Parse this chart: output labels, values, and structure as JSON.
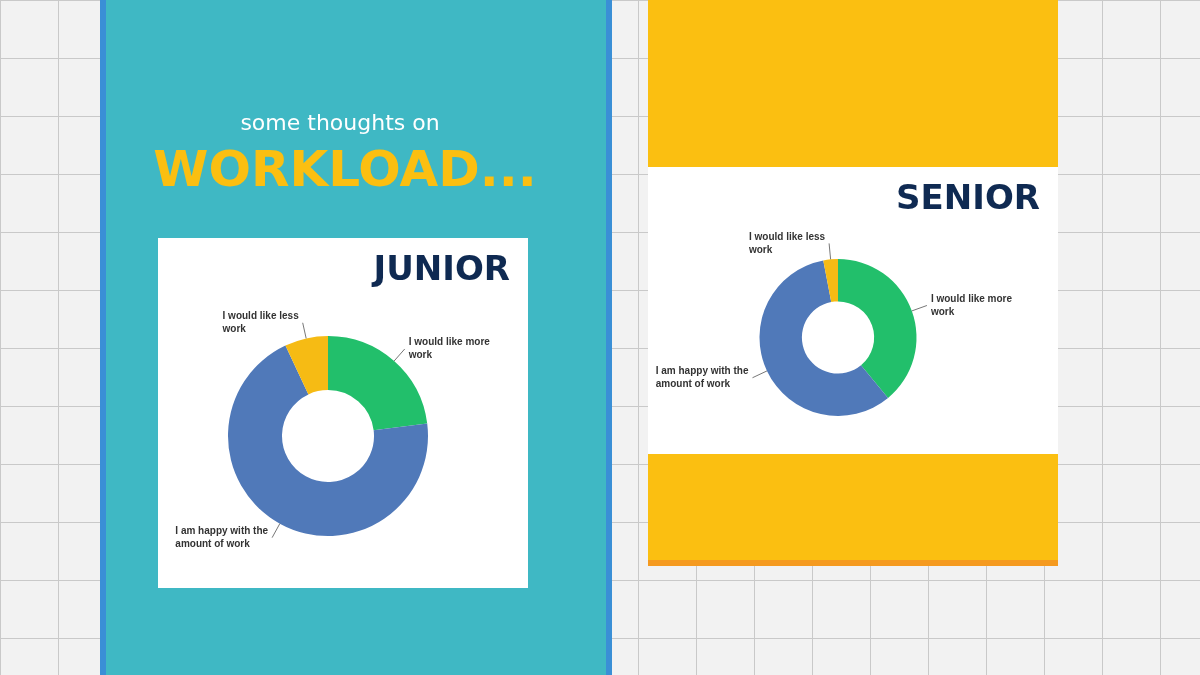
{
  "chart_data": [
    {
      "type": "donut",
      "title": "JUNIOR",
      "annotations": [
        "some thoughts on",
        "WORKLOAD..."
      ],
      "categories": [
        "I would like more work",
        "I am happy with the amount of work",
        "I would like less work"
      ],
      "values": [
        23,
        70,
        7
      ],
      "colors": [
        "#22bf6b",
        "#5079b9",
        "#f6bb14"
      ],
      "legend": false,
      "data_labels": false
    },
    {
      "type": "donut",
      "title": "SENIOR",
      "categories": [
        "I would like more work",
        "I am happy with the amount of work",
        "I would like less work"
      ],
      "values": [
        39,
        58,
        3
      ],
      "colors": [
        "#22bf6b",
        "#5079b9",
        "#f6bb14"
      ],
      "legend": false,
      "data_labels": false
    }
  ]
}
